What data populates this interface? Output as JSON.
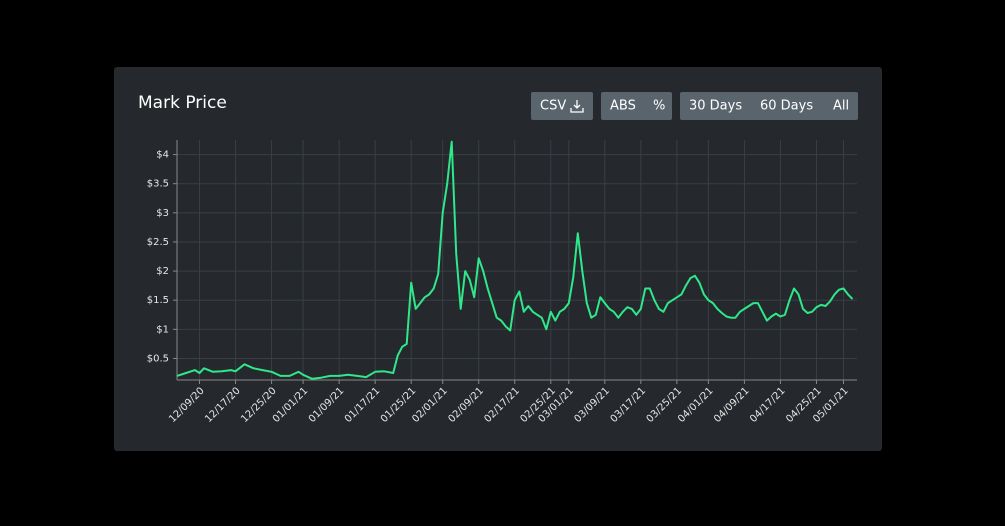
{
  "chart_data": {
    "type": "line",
    "title": "Mark Price",
    "x": [
      "12/04/20",
      "12/06/20",
      "12/08/20",
      "12/09/20",
      "12/10/20",
      "12/12/20",
      "12/14/20",
      "12/16/20",
      "12/17/20",
      "12/19/20",
      "12/21/20",
      "12/23/20",
      "12/25/20",
      "12/27/20",
      "12/29/20",
      "12/31/20",
      "01/01/21",
      "01/03/21",
      "01/05/21",
      "01/07/21",
      "01/09/21",
      "01/11/21",
      "01/13/21",
      "01/15/21",
      "01/17/21",
      "01/19/21",
      "01/21/21",
      "01/22/21",
      "01/23/21",
      "01/24/21",
      "01/25/21",
      "01/26/21",
      "01/27/21",
      "01/28/21",
      "01/29/21",
      "01/30/21",
      "01/31/21",
      "02/01/21",
      "02/02/21",
      "02/03/21",
      "02/04/21",
      "02/05/21",
      "02/06/21",
      "02/07/21",
      "02/08/21",
      "02/09/21",
      "02/10/21",
      "02/11/21",
      "02/12/21",
      "02/13/21",
      "02/14/21",
      "02/15/21",
      "02/16/21",
      "02/17/21",
      "02/18/21",
      "02/19/21",
      "02/20/21",
      "02/21/21",
      "02/22/21",
      "02/23/21",
      "02/24/21",
      "02/25/21",
      "02/26/21",
      "02/27/21",
      "02/28/21",
      "03/01/21",
      "03/02/21",
      "03/03/21",
      "03/04/21",
      "03/05/21",
      "03/06/21",
      "03/07/21",
      "03/08/21",
      "03/09/21",
      "03/10/21",
      "03/11/21",
      "03/12/21",
      "03/13/21",
      "03/14/21",
      "03/15/21",
      "03/16/21",
      "03/17/21",
      "03/18/21",
      "03/19/21",
      "03/20/21",
      "03/21/21",
      "03/22/21",
      "03/23/21",
      "03/24/21",
      "03/25/21",
      "03/26/21",
      "03/27/21",
      "03/28/21",
      "03/29/21",
      "03/30/21",
      "03/31/21",
      "04/01/21",
      "04/02/21",
      "04/03/21",
      "04/04/21",
      "04/05/21",
      "04/06/21",
      "04/07/21",
      "04/08/21",
      "04/09/21",
      "04/10/21",
      "04/11/21",
      "04/12/21",
      "04/13/21",
      "04/14/21",
      "04/15/21",
      "04/16/21",
      "04/17/21",
      "04/18/21",
      "04/19/21",
      "04/20/21",
      "04/21/21",
      "04/22/21",
      "04/23/21",
      "04/24/21",
      "04/25/21",
      "04/26/21",
      "04/27/21",
      "04/28/21",
      "04/29/21",
      "04/30/21",
      "05/01/21",
      "05/02/21",
      "05/03/21"
    ],
    "series": [
      {
        "color": "#2ee88a",
        "values": [
          0.2,
          0.25,
          0.3,
          0.25,
          0.33,
          0.27,
          0.28,
          0.3,
          0.28,
          0.4,
          0.33,
          0.3,
          0.27,
          0.2,
          0.2,
          0.27,
          0.22,
          0.15,
          0.17,
          0.2,
          0.2,
          0.22,
          0.2,
          0.18,
          0.27,
          0.28,
          0.25,
          0.55,
          0.7,
          0.75,
          1.8,
          1.35,
          1.45,
          1.55,
          1.6,
          1.7,
          1.95,
          3.0,
          3.5,
          4.22,
          2.3,
          1.35,
          2.0,
          1.85,
          1.55,
          2.22,
          2.0,
          1.7,
          1.45,
          1.2,
          1.15,
          1.05,
          0.98,
          1.5,
          1.65,
          1.3,
          1.4,
          1.3,
          1.25,
          1.2,
          1.0,
          1.3,
          1.15,
          1.3,
          1.35,
          1.45,
          1.9,
          2.65,
          2.0,
          1.45,
          1.2,
          1.25,
          1.55,
          1.45,
          1.35,
          1.3,
          1.2,
          1.3,
          1.38,
          1.35,
          1.25,
          1.35,
          1.7,
          1.7,
          1.5,
          1.35,
          1.3,
          1.45,
          1.5,
          1.55,
          1.6,
          1.75,
          1.88,
          1.92,
          1.8,
          1.6,
          1.5,
          1.45,
          1.35,
          1.28,
          1.22,
          1.2,
          1.2,
          1.3,
          1.35,
          1.4,
          1.45,
          1.45,
          1.3,
          1.15,
          1.22,
          1.27,
          1.22,
          1.25,
          1.5,
          1.7,
          1.6,
          1.35,
          1.28,
          1.3,
          1.38,
          1.42,
          1.4,
          1.48,
          1.6,
          1.68,
          1.7,
          1.6,
          1.52
        ]
      }
    ],
    "xlim": [
      "12/04/20",
      "05/04/21"
    ],
    "xticks": [
      "12/09/20",
      "12/17/20",
      "12/25/20",
      "01/01/21",
      "01/09/21",
      "01/17/21",
      "01/25/21",
      "02/01/21",
      "02/09/21",
      "02/17/21",
      "02/25/21",
      "03/01/21",
      "03/09/21",
      "03/17/21",
      "03/25/21",
      "04/01/21",
      "04/09/21",
      "04/17/21",
      "04/25/21",
      "05/01/21"
    ],
    "ylim": [
      0.13,
      4.25
    ],
    "yticks": [
      {
        "value": 0.5,
        "label": "$0.5"
      },
      {
        "value": 1,
        "label": "$1"
      },
      {
        "value": 1.5,
        "label": "$1.5"
      },
      {
        "value": 2,
        "label": "$2"
      },
      {
        "value": 2.5,
        "label": "$2.5"
      },
      {
        "value": 3,
        "label": "$3"
      },
      {
        "value": 3.5,
        "label": "$3.5"
      },
      {
        "value": 4,
        "label": "$4"
      }
    ],
    "grid": true
  },
  "controls": {
    "csv": "CSV",
    "abs": "ABS",
    "pct": "%",
    "d30": "30 Days",
    "d60": "60 Days",
    "all": "All"
  }
}
